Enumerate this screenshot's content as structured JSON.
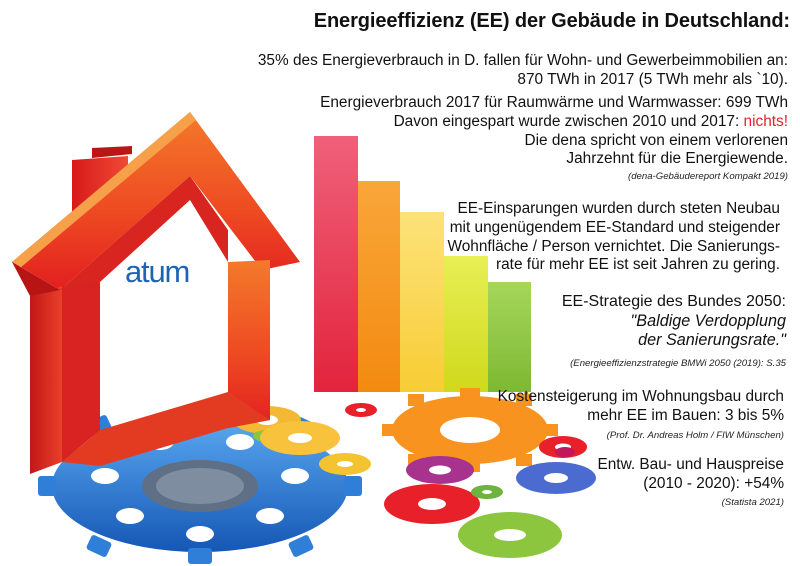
{
  "header": {
    "title": "Energieeffizienz (EE) der Gebäude in Deutschland:"
  },
  "logo": {
    "text": "atum"
  },
  "blocks": {
    "consumption": {
      "line1": "35% des Energieverbrauch in D. fallen für Wohn- und Gewerbeimmobilien an:",
      "line2": "870 TWh in 2017 (5 TWh mehr als `10)."
    },
    "heat": {
      "line1": "Energieverbrauch 2017 für Raumwärme und Warmwasser: 699 TWh",
      "line2_prefix": "Davon eingespart wurde zwischen 2010 und 2017: ",
      "line2_highlight": "nichts!",
      "line3": "Die dena spricht von einem verlorenen",
      "line4": "Jahrzehnt für die Energiewende.",
      "source": "(dena-Gebäudereport Kompakt 2019)"
    },
    "savings": {
      "line1": "EE-Einsparungen wurden durch steten Neubau",
      "line2": "mit ungenügendem EE-Standard und steigender",
      "line3": "Wohnfläche / Person vernichtet. Die Sanierungs-",
      "line4": "rate für mehr EE ist seit Jahren zu gering."
    },
    "strategy": {
      "line1": "EE-Strategie des Bundes 2050:",
      "quote1": "\"Baldige Verdopplung",
      "quote2": "der Sanierungsrate.\"",
      "source": "(Energieeffizienzstrategie BMWi 2050 (2019): S.35"
    },
    "costs": {
      "line1": "Kostensteigerung im Wohnungsbau durch",
      "line2": "mehr EE im Bauen: 3 bis 5%",
      "source": "(Prof. Dr. Andreas Holm / FIW Münschen)"
    },
    "prices": {
      "line1": "Entw. Bau- und Hauspreise",
      "line2": "(2010 - 2020): +54%",
      "source": "(Statista 2021)"
    }
  },
  "colors": {
    "accent_red": "#e8202a",
    "house_orange": "#f05a1e",
    "logo_blue": "#1f64b4",
    "bars": [
      "#e8354a",
      "#f7941d",
      "#fbd64b",
      "#d7e22b",
      "#8cc63f"
    ]
  },
  "icons": [
    "house-illustration-icon",
    "efficiency-bars-icon",
    "gears-icon"
  ]
}
